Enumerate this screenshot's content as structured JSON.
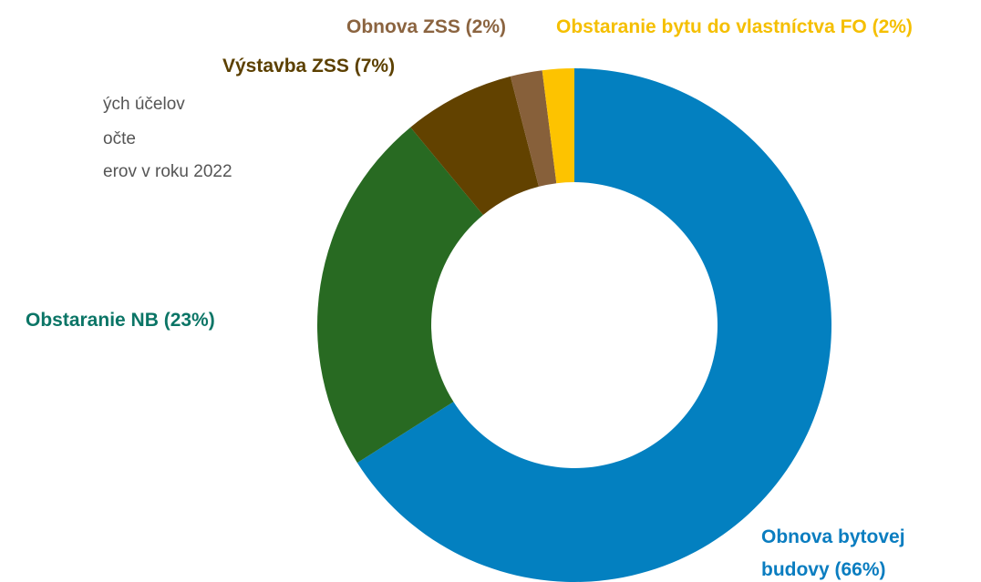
{
  "chart_data": {
    "type": "donut",
    "subtitle_lines": [
      "ých účelov",
      "očte",
      "erov v roku 2022"
    ],
    "values": [
      66,
      23,
      7,
      2,
      2
    ],
    "value_labels": [
      "Obnova bytovej budovy (66%)",
      "Obstaranie NB (23%)",
      "Výstavba ZSS (7%)",
      "Obnova ZSS (2%)",
      "Obstaranie bytu do vlastníctva FO (2%)"
    ],
    "colors": [
      "#0380c0",
      "#286a22",
      "#624200",
      "#87603a",
      "#fdc300"
    ],
    "label_colors": [
      "#0a7dc0",
      "#0b7566",
      "#5c4000",
      "#8b6440",
      "#f5bf00"
    ]
  }
}
